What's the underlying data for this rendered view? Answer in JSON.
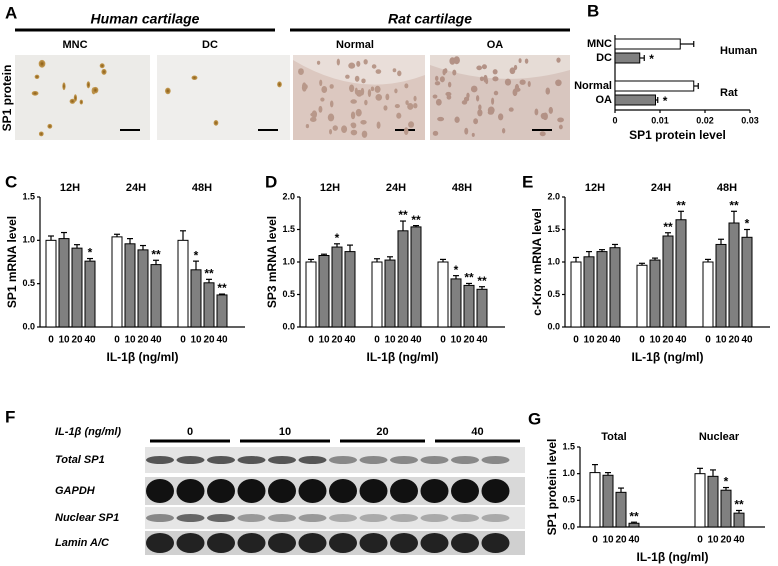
{
  "panel_labels": [
    "A",
    "B",
    "C",
    "D",
    "E",
    "F",
    "G"
  ],
  "panel_a": {
    "ylabel": "SP1 protein",
    "groups": [
      {
        "title": "Human cartilage",
        "samples": [
          "MNC",
          "DC"
        ]
      },
      {
        "title": "Rat cartilage",
        "samples": [
          "Normal",
          "OA"
        ]
      }
    ]
  },
  "panel_f": {
    "dose_label": "IL-1β (ng/ml)",
    "doses": [
      "0",
      "10",
      "20",
      "40"
    ],
    "rows": [
      "Total SP1",
      "GAPDH",
      "Nuclear SP1",
      "Lamin A/C"
    ]
  },
  "chart_data": [
    {
      "type": "hbar",
      "xlabel": "SP1 protein level",
      "colors": [
        "#ffffff",
        "#808080"
      ],
      "series": [
        {
          "name": "Human",
          "categories": [
            "MNC",
            "DC"
          ],
          "values": [
            0.0145,
            0.0055
          ],
          "errors": [
            0.003,
            0.001
          ],
          "annotations": [
            null,
            "*"
          ]
        },
        {
          "name": "Rat",
          "categories": [
            "Normal",
            "OA"
          ],
          "values": [
            0.0175,
            0.009
          ],
          "errors": [
            0.001,
            0.0005
          ],
          "annotations": [
            null,
            "*"
          ]
        }
      ],
      "xlim": [
        0,
        0.03
      ],
      "xticks": [
        0,
        0.01,
        0.02,
        0.03
      ]
    },
    {
      "type": "grouped_bar",
      "ylabel": "SP1 mRNA level",
      "xlabel": "IL-1β (ng/ml)",
      "categories": [
        "0",
        "10",
        "20",
        "40"
      ],
      "colors": [
        "#ffffff",
        "#808080",
        "#808080",
        "#808080"
      ],
      "series": [
        {
          "name": "12H",
          "values": [
            1.0,
            1.02,
            0.91,
            0.76
          ],
          "errors": [
            0.05,
            0.07,
            0.04,
            0.03
          ],
          "annotations": [
            null,
            null,
            null,
            "*"
          ]
        },
        {
          "name": "24H",
          "values": [
            1.04,
            0.96,
            0.89,
            0.72
          ],
          "errors": [
            0.03,
            0.06,
            0.05,
            0.05
          ],
          "annotations": [
            null,
            null,
            null,
            "**"
          ]
        },
        {
          "name": "48H",
          "values": [
            1.0,
            0.66,
            0.51,
            0.37
          ],
          "errors": [
            0.11,
            0.1,
            0.04,
            0.01
          ],
          "annotations": [
            null,
            "*",
            "**",
            "**"
          ]
        }
      ],
      "ylim": [
        0,
        1.5
      ],
      "yticks": [
        {
          "value": 0,
          "label": "0.0"
        },
        0.5,
        {
          "value": 1,
          "label": "1.0"
        },
        1.5
      ]
    },
    {
      "type": "grouped_bar",
      "ylabel": "SP3 mRNA level",
      "xlabel": "IL-1β (ng/ml)",
      "categories": [
        "0",
        "10",
        "20",
        "40"
      ],
      "colors": [
        "#ffffff",
        "#808080",
        "#808080",
        "#808080"
      ],
      "series": [
        {
          "name": "12H",
          "values": [
            1.0,
            1.1,
            1.23,
            1.16
          ],
          "errors": [
            0.04,
            0.02,
            0.05,
            0.1
          ],
          "annotations": [
            null,
            null,
            "*",
            null
          ]
        },
        {
          "name": "24H",
          "values": [
            1.0,
            1.03,
            1.48,
            1.54
          ],
          "errors": [
            0.05,
            0.05,
            0.15,
            0.02
          ],
          "annotations": [
            null,
            null,
            "**",
            "**"
          ]
        },
        {
          "name": "48H",
          "values": [
            1.0,
            0.74,
            0.64,
            0.58
          ],
          "errors": [
            0.04,
            0.05,
            0.03,
            0.04
          ],
          "annotations": [
            null,
            "*",
            "**",
            "**"
          ]
        }
      ],
      "ylim": [
        0,
        2
      ],
      "yticks": [
        {
          "value": 0,
          "label": "0.0"
        },
        0.5,
        {
          "value": 1,
          "label": "1.0"
        },
        1.5,
        {
          "value": 2,
          "label": "2.0"
        }
      ]
    },
    {
      "type": "grouped_bar",
      "ylabel": "c-Krox mRNA level",
      "xlabel": "IL-1β (ng/ml)",
      "categories": [
        "0",
        "10",
        "20",
        "40"
      ],
      "colors": [
        "#ffffff",
        "#808080",
        "#808080",
        "#808080"
      ],
      "series": [
        {
          "name": "12H",
          "values": [
            1.0,
            1.08,
            1.16,
            1.22
          ],
          "errors": [
            0.07,
            0.08,
            0.03,
            0.05
          ],
          "annotations": [
            null,
            null,
            null,
            null
          ]
        },
        {
          "name": "24H",
          "values": [
            0.95,
            1.03,
            1.4,
            1.65
          ],
          "errors": [
            0.03,
            0.03,
            0.05,
            0.13
          ],
          "annotations": [
            null,
            null,
            "**",
            "**"
          ]
        },
        {
          "name": "48H",
          "values": [
            1.0,
            1.27,
            1.6,
            1.38
          ],
          "errors": [
            0.04,
            0.08,
            0.18,
            0.12
          ],
          "annotations": [
            null,
            null,
            "**",
            "*"
          ]
        }
      ],
      "ylim": [
        0,
        2
      ],
      "yticks": [
        {
          "value": 0,
          "label": "0.0"
        },
        0.5,
        {
          "value": 1,
          "label": "1.0"
        },
        1.5,
        {
          "value": 2,
          "label": "2.0"
        }
      ]
    },
    {
      "type": "grouped_bar",
      "ylabel": "SP1 protein level",
      "xlabel": "IL-1β (ng/ml)",
      "categories": [
        "0",
        "10",
        "20",
        "40"
      ],
      "colors": [
        "#ffffff",
        "#808080",
        "#808080",
        "#808080"
      ],
      "series": [
        {
          "name": "Total",
          "values": [
            1.02,
            0.97,
            0.65,
            0.07
          ],
          "errors": [
            0.15,
            0.05,
            0.08,
            0.02
          ],
          "annotations": [
            null,
            null,
            null,
            "**"
          ]
        },
        {
          "name": "Nuclear",
          "values": [
            1.0,
            0.95,
            0.69,
            0.26
          ],
          "errors": [
            0.1,
            0.12,
            0.05,
            0.05
          ],
          "annotations": [
            null,
            null,
            "*",
            "**"
          ]
        }
      ],
      "ylim": [
        0,
        1.5
      ],
      "yticks": [
        {
          "value": 0,
          "label": "0.0"
        },
        0.5,
        {
          "value": 1,
          "label": "1.0"
        },
        1.5
      ]
    }
  ]
}
